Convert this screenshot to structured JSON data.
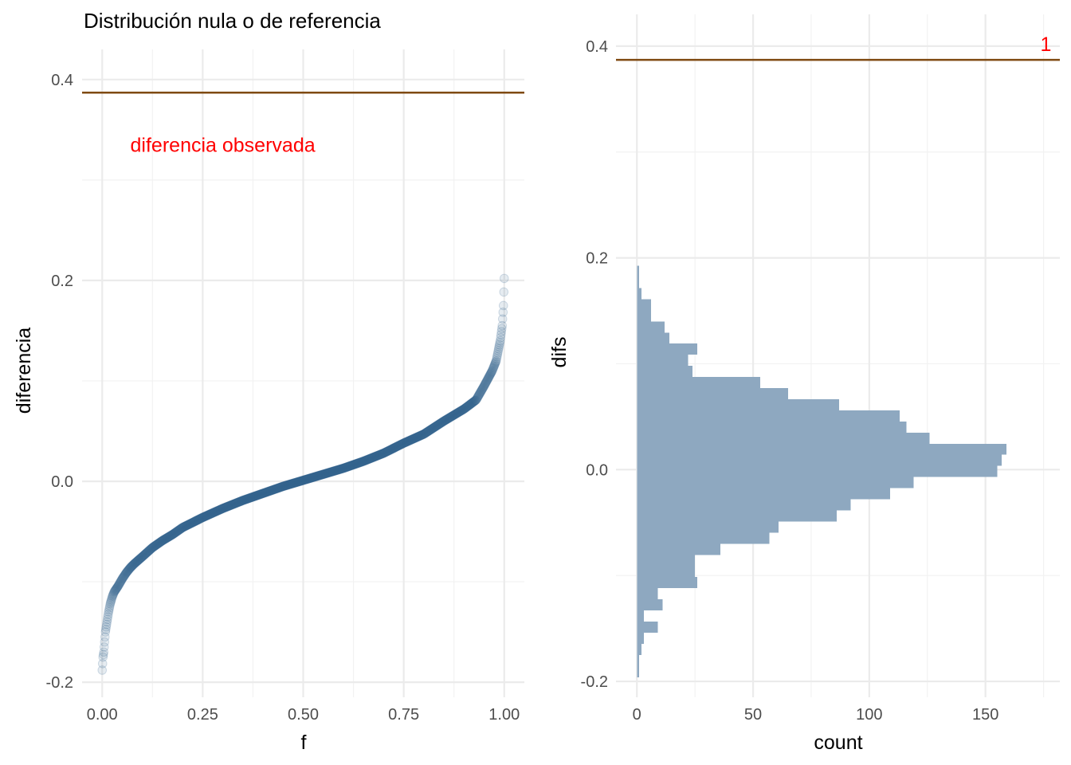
{
  "colors": {
    "points": "#2f5f8a",
    "bars": "#8ea8c0",
    "reference_line": "#7f4a12",
    "annotation": "#ff0000"
  },
  "chart_data": [
    {
      "type": "scatter",
      "title": "Distribución nula o de referencia",
      "xlabel": "f",
      "ylabel": "diferencia",
      "xlim": [
        -0.05,
        1.05
      ],
      "ylim": [
        -0.215,
        0.43
      ],
      "x_ticks": [
        "0.00",
        "0.25",
        "0.50",
        "0.75",
        "1.00"
      ],
      "y_ticks": [
        "-0.2",
        "0.0",
        "0.2",
        "0.4"
      ],
      "grid": true,
      "reference_line": {
        "y": 0.387
      },
      "annotation": {
        "text": "diferencia observada",
        "x": 0.3,
        "y": 0.335
      },
      "quantile_points": [
        [
          0.0,
          -0.188
        ],
        [
          0.002,
          -0.175
        ],
        [
          0.004,
          -0.17
        ],
        [
          0.006,
          -0.16
        ],
        [
          0.008,
          -0.15
        ],
        [
          0.012,
          -0.14
        ],
        [
          0.016,
          -0.13
        ],
        [
          0.02,
          -0.122
        ],
        [
          0.025,
          -0.115
        ],
        [
          0.03,
          -0.11
        ],
        [
          0.04,
          -0.104
        ],
        [
          0.05,
          -0.097
        ],
        [
          0.06,
          -0.091
        ],
        [
          0.07,
          -0.086
        ],
        [
          0.08,
          -0.082
        ],
        [
          0.1,
          -0.075
        ],
        [
          0.125,
          -0.066
        ],
        [
          0.15,
          -0.059
        ],
        [
          0.175,
          -0.053
        ],
        [
          0.2,
          -0.046
        ],
        [
          0.25,
          -0.036
        ],
        [
          0.3,
          -0.027
        ],
        [
          0.35,
          -0.019
        ],
        [
          0.4,
          -0.012
        ],
        [
          0.45,
          -0.005
        ],
        [
          0.5,
          0.001
        ],
        [
          0.55,
          0.007
        ],
        [
          0.6,
          0.013
        ],
        [
          0.65,
          0.02
        ],
        [
          0.7,
          0.028
        ],
        [
          0.75,
          0.038
        ],
        [
          0.8,
          0.047
        ],
        [
          0.85,
          0.06
        ],
        [
          0.9,
          0.072
        ],
        [
          0.93,
          0.081
        ],
        [
          0.95,
          0.095
        ],
        [
          0.97,
          0.11
        ],
        [
          0.98,
          0.12
        ],
        [
          0.99,
          0.14
        ],
        [
          0.995,
          0.155
        ],
        [
          0.998,
          0.175
        ],
        [
          1.0,
          0.202
        ]
      ]
    },
    {
      "type": "bar",
      "orientation": "horizontal",
      "xlabel": "count",
      "ylabel": "difs",
      "xlim": [
        -9,
        182
      ],
      "ylim": [
        -0.215,
        0.43
      ],
      "x_ticks": [
        "0",
        "50",
        "100",
        "150"
      ],
      "y_ticks": [
        "-0.2",
        "0.0",
        "0.2",
        "0.4"
      ],
      "grid": true,
      "reference_line": {
        "y": 0.387
      },
      "annotation": {
        "text": "1",
        "x": 176,
        "y": 0.402
      },
      "bin_width": 0.0105,
      "bin_start": -0.196,
      "counts": [
        1,
        1,
        2,
        3,
        9,
        3,
        11,
        9,
        26,
        25,
        25,
        36,
        57,
        61,
        86,
        92,
        109,
        119,
        155,
        157,
        159,
        126,
        116,
        113,
        87,
        65,
        53,
        24,
        22,
        26,
        14,
        12,
        6,
        6,
        2,
        1,
        1
      ]
    }
  ]
}
